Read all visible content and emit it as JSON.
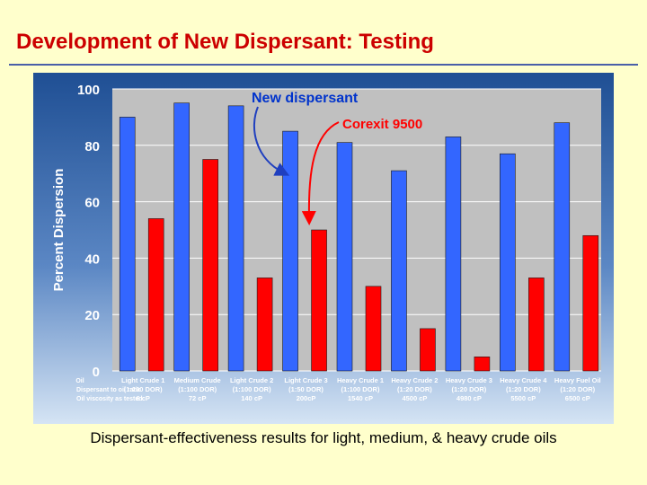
{
  "slide": {
    "title": "Development of New Dispersant:  Testing",
    "caption": "Dispersant-effectiveness results for light, medium, & heavy crude oils"
  },
  "chart_data": {
    "type": "bar",
    "title": "",
    "xlabel": "",
    "ylabel": "Percent Dispersion",
    "ylim": [
      0,
      100
    ],
    "yticks": [
      "0",
      "20",
      "40",
      "60",
      "80",
      "100"
    ],
    "grid": true,
    "categories": [
      [
        "Light Crude 1",
        "(1:200 DOR)",
        "6 cP"
      ],
      [
        "Medium Crude",
        "(1:100 DOR)",
        "72 cP"
      ],
      [
        "Light Crude 2",
        "(1:100 DOR)",
        "140 cP"
      ],
      [
        "Light Crude 3",
        "(1:50 DOR)",
        "200cP"
      ],
      [
        "Heavy Crude 1",
        "(1:100 DOR)",
        "1540 cP"
      ],
      [
        "Heavy Crude 2",
        "(1:20 DOR)",
        "4500 cP"
      ],
      [
        "Heavy Crude 3",
        "(1:20 DOR)",
        "4980 cP"
      ],
      [
        "Heavy Crude 4",
        "(1:20 DOR)",
        "5500 cP"
      ],
      [
        "Heavy Fuel Oil",
        "(1:20 DOR)",
        "6500 cP"
      ]
    ],
    "row_labels": [
      "Oil",
      "Dispersant to oil ratio",
      "Oil viscosity as tested"
    ],
    "series": [
      {
        "name": "New dispersant",
        "color": "#3366ff",
        "values": [
          90,
          95,
          94,
          85,
          81,
          71,
          83,
          77,
          88
        ]
      },
      {
        "name": "Corexit 9500",
        "color": "#ff0000",
        "values": [
          54,
          75,
          33,
          50,
          30,
          15,
          5,
          33,
          48
        ]
      }
    ],
    "annotations": [
      {
        "text": "New dispersant",
        "color": "#0033cc"
      },
      {
        "text": "Corexit 9500",
        "color": "#ff0000"
      }
    ],
    "colors": {
      "panel_top": "#1f4f94",
      "panel_bottom": "#cfe0f2",
      "plot_area": "#c0c0c0",
      "gridline": "#ffffff",
      "axis_text": "#ffffff"
    }
  }
}
